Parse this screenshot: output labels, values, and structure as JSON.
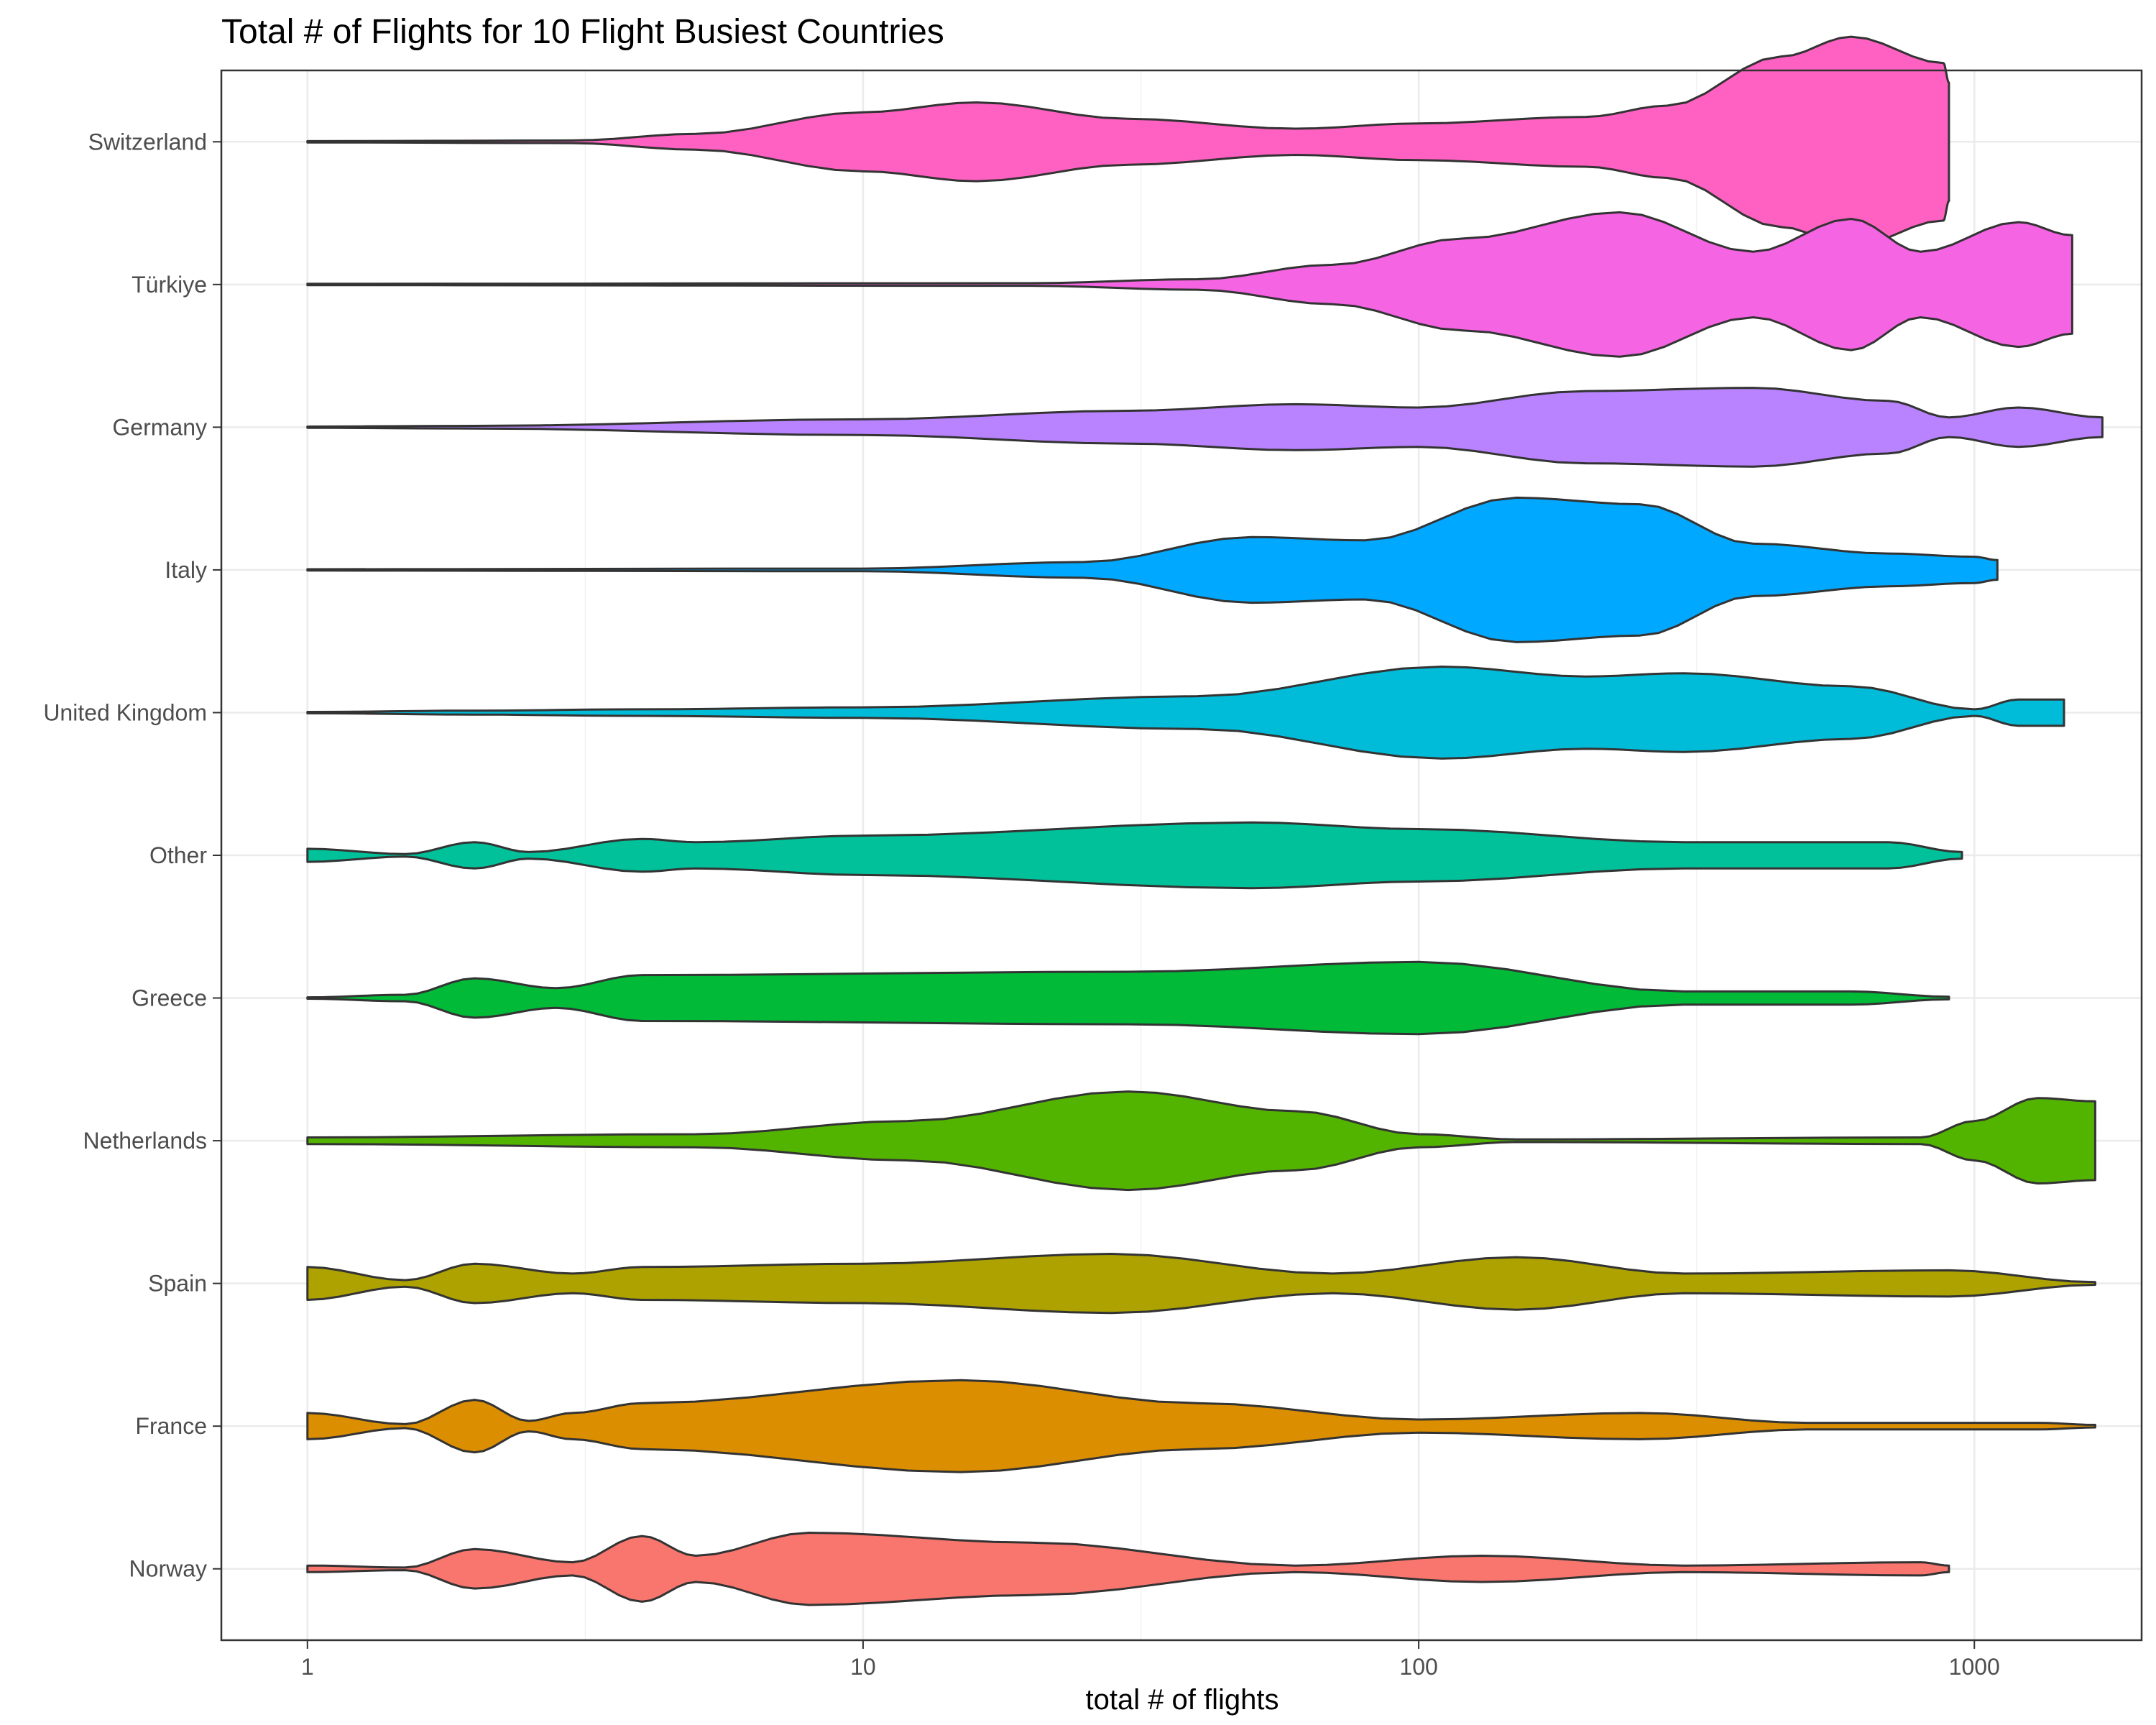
{
  "chart_data": {
    "type": "violin",
    "title": "Total # of Flights for 10 Flight Busiest Countries",
    "xlabel": "total # of flights",
    "ylabel": "",
    "x_scale": "log10",
    "xlim": [
      0.7,
      2000
    ],
    "x_ticks": [
      "1",
      "10",
      "100",
      "1000"
    ],
    "x_tick_values": [
      1,
      10,
      100,
      1000
    ],
    "x_minor_values": [
      3.1623,
      31.623,
      316.23
    ],
    "grid": true,
    "legend": "none",
    "categories": [
      "Switzerland",
      "Türkiye",
      "Germany",
      "Italy",
      "United Kingdom",
      "Other",
      "Greece",
      "Netherlands",
      "Spain",
      "France",
      "Norway"
    ],
    "series": [
      {
        "category": "Switzerland",
        "color": "#FF61C3",
        "profile": [
          [
            1,
            0.01
          ],
          [
            3,
            0.02
          ],
          [
            5,
            0.12
          ],
          [
            10,
            0.45
          ],
          [
            16,
            0.6
          ],
          [
            30,
            0.35
          ],
          [
            60,
            0.2
          ],
          [
            100,
            0.28
          ],
          [
            200,
            0.38
          ],
          [
            280,
            0.55
          ],
          [
            450,
            1.3
          ],
          [
            600,
            1.6
          ],
          [
            880,
            1.2
          ],
          [
            900,
            0.9
          ]
        ]
      },
      {
        "category": "Türkiye",
        "color": "#F564E3",
        "profile": [
          [
            1,
            0.01
          ],
          [
            20,
            0.02
          ],
          [
            40,
            0.08
          ],
          [
            70,
            0.3
          ],
          [
            120,
            0.7
          ],
          [
            230,
            1.1
          ],
          [
            400,
            0.5
          ],
          [
            600,
            1.0
          ],
          [
            800,
            0.5
          ],
          [
            1200,
            0.95
          ],
          [
            1500,
            0.75
          ]
        ]
      },
      {
        "category": "Germany",
        "color": "#B983FF",
        "profile": [
          [
            1,
            0.01
          ],
          [
            2,
            0.02
          ],
          [
            10,
            0.12
          ],
          [
            30,
            0.25
          ],
          [
            60,
            0.35
          ],
          [
            100,
            0.3
          ],
          [
            200,
            0.55
          ],
          [
            400,
            0.6
          ],
          [
            700,
            0.4
          ],
          [
            900,
            0.15
          ],
          [
            1200,
            0.3
          ],
          [
            1700,
            0.15
          ]
        ]
      },
      {
        "category": "Italy",
        "color": "#00A9FF",
        "profile": [
          [
            1,
            0.01
          ],
          [
            10,
            0.02
          ],
          [
            25,
            0.12
          ],
          [
            50,
            0.5
          ],
          [
            80,
            0.45
          ],
          [
            150,
            1.1
          ],
          [
            250,
            1.0
          ],
          [
            400,
            0.4
          ],
          [
            700,
            0.25
          ],
          [
            1000,
            0.2
          ],
          [
            1100,
            0.15
          ]
        ]
      },
      {
        "category": "United Kingdom",
        "color": "#00BCD8",
        "profile": [
          [
            1,
            0.01
          ],
          [
            2,
            0.03
          ],
          [
            4,
            0.05
          ],
          [
            10,
            0.08
          ],
          [
            40,
            0.25
          ],
          [
            110,
            0.7
          ],
          [
            200,
            0.55
          ],
          [
            300,
            0.6
          ],
          [
            600,
            0.4
          ],
          [
            1000,
            0.05
          ],
          [
            1200,
            0.2
          ],
          [
            1450,
            0.2
          ]
        ]
      },
      {
        "category": "Other",
        "color": "#00C19A",
        "profile": [
          [
            1,
            0.1
          ],
          [
            1.5,
            0.02
          ],
          [
            2,
            0.2
          ],
          [
            2.5,
            0.05
          ],
          [
            4,
            0.25
          ],
          [
            5,
            0.2
          ],
          [
            10,
            0.3
          ],
          [
            50,
            0.5
          ],
          [
            100,
            0.4
          ],
          [
            300,
            0.2
          ],
          [
            700,
            0.2
          ],
          [
            950,
            0.05
          ]
        ]
      },
      {
        "category": "Greece",
        "color": "#00BA38",
        "profile": [
          [
            1,
            0.01
          ],
          [
            1.5,
            0.05
          ],
          [
            2,
            0.3
          ],
          [
            2.8,
            0.15
          ],
          [
            4,
            0.35
          ],
          [
            30,
            0.4
          ],
          [
            100,
            0.55
          ],
          [
            300,
            0.1
          ],
          [
            600,
            0.1
          ],
          [
            900,
            0.02
          ]
        ]
      },
      {
        "category": "Netherlands",
        "color": "#53B400",
        "profile": [
          [
            1,
            0.05
          ],
          [
            5,
            0.1
          ],
          [
            12,
            0.3
          ],
          [
            30,
            0.75
          ],
          [
            60,
            0.45
          ],
          [
            100,
            0.1
          ],
          [
            150,
            0.02
          ],
          [
            800,
            0.05
          ],
          [
            1000,
            0.3
          ],
          [
            1300,
            0.65
          ],
          [
            1650,
            0.6
          ]
        ]
      },
      {
        "category": "Spain",
        "color": "#A58AFF",
        "fill": "#ADA200",
        "profile": [
          [
            1,
            0.25
          ],
          [
            1.5,
            0.05
          ],
          [
            2,
            0.3
          ],
          [
            3,
            0.15
          ],
          [
            4,
            0.25
          ],
          [
            10,
            0.3
          ],
          [
            28,
            0.45
          ],
          [
            70,
            0.15
          ],
          [
            150,
            0.4
          ],
          [
            300,
            0.15
          ],
          [
            900,
            0.2
          ],
          [
            1650,
            0.02
          ]
        ]
      },
      {
        "category": "France",
        "color": "#DB8E00",
        "profile": [
          [
            1,
            0.2
          ],
          [
            1.5,
            0.03
          ],
          [
            2,
            0.4
          ],
          [
            2.5,
            0.08
          ],
          [
            3,
            0.2
          ],
          [
            4,
            0.35
          ],
          [
            15,
            0.7
          ],
          [
            40,
            0.35
          ],
          [
            100,
            0.1
          ],
          [
            250,
            0.2
          ],
          [
            500,
            0.05
          ],
          [
            1300,
            0.05
          ],
          [
            1650,
            0.02
          ]
        ]
      },
      {
        "category": "Norway",
        "color": "#F8766D",
        "profile": [
          [
            1,
            0.05
          ],
          [
            1.5,
            0.02
          ],
          [
            2,
            0.3
          ],
          [
            3,
            0.1
          ],
          [
            4,
            0.5
          ],
          [
            5,
            0.2
          ],
          [
            8,
            0.55
          ],
          [
            20,
            0.4
          ],
          [
            60,
            0.05
          ],
          [
            130,
            0.2
          ],
          [
            300,
            0.05
          ],
          [
            800,
            0.1
          ],
          [
            900,
            0.05
          ]
        ]
      }
    ]
  }
}
